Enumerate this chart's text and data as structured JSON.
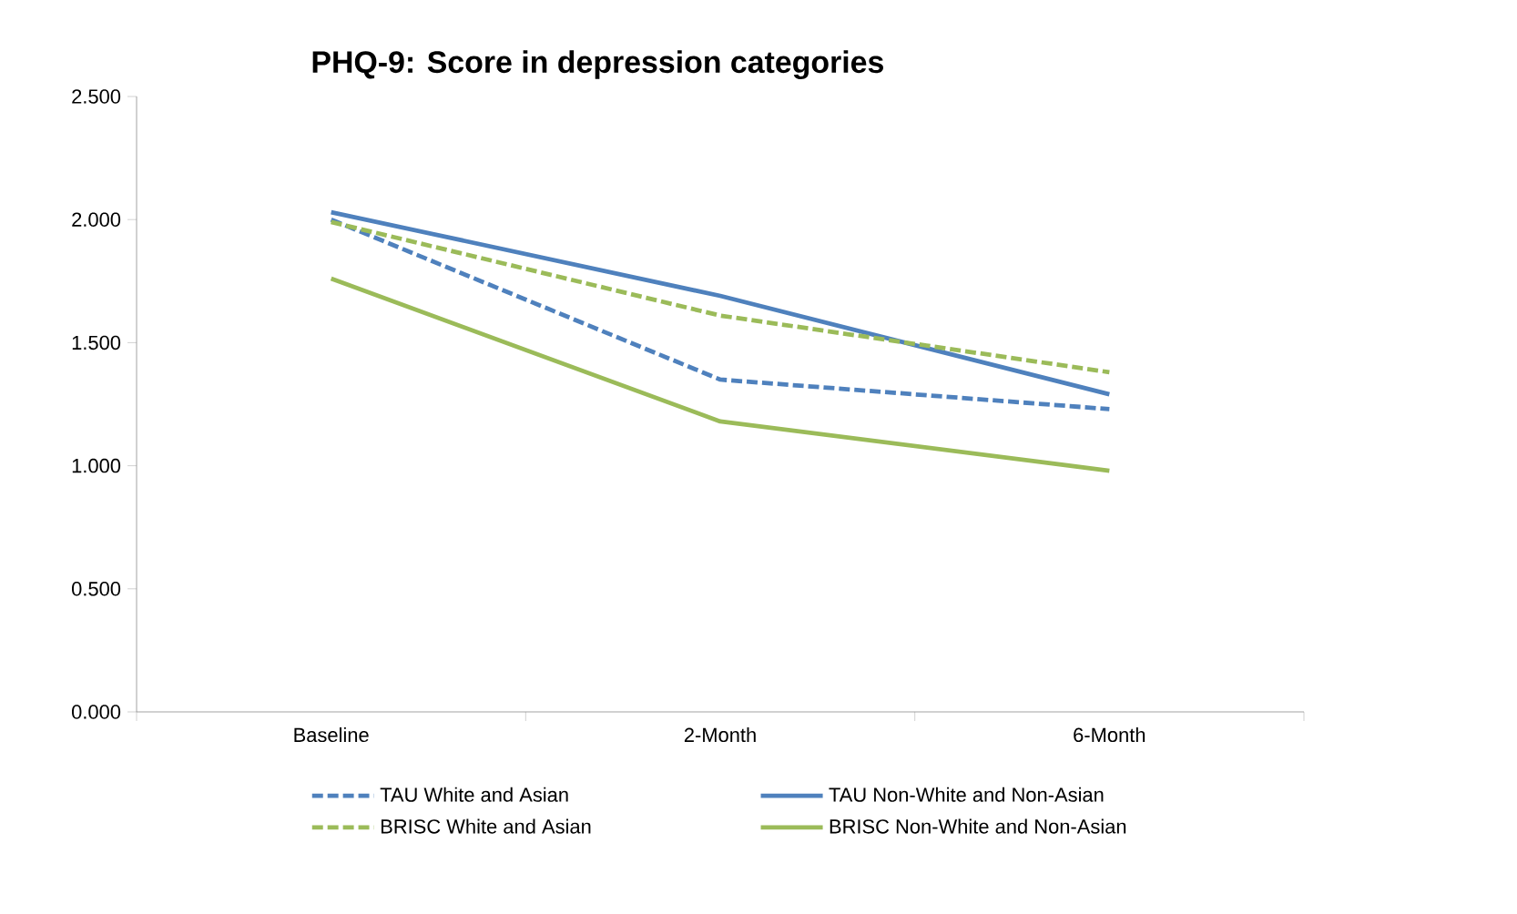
{
  "chart_data": {
    "type": "line",
    "title": "PHQ-9: Score in depression categories",
    "categories": [
      "Baseline",
      "2-Month",
      "6-Month"
    ],
    "series": [
      {
        "name": "TAU White and Asian",
        "color": "#4f81bd",
        "line_style": "dashed",
        "values": [
          2.0,
          1.35,
          1.23
        ]
      },
      {
        "name": "TAU Non-White and Non-Asian",
        "color": "#4f81bd",
        "line_style": "solid",
        "values": [
          2.03,
          1.69,
          1.29
        ]
      },
      {
        "name": "BRISC White and Asian",
        "color": "#9bbb59",
        "line_style": "dashed",
        "values": [
          1.99,
          1.61,
          1.38
        ]
      },
      {
        "name": "BRISC Non-White and Non-Asian",
        "color": "#9bbb59",
        "line_style": "solid",
        "values": [
          1.76,
          1.18,
          0.98
        ]
      }
    ],
    "ylim": [
      0,
      2.5
    ],
    "yticks": [
      {
        "value": 0,
        "label": "0.000"
      },
      {
        "value": 0.5,
        "label": "0.500"
      },
      {
        "value": 1.0,
        "label": "1.000"
      },
      {
        "value": 1.5,
        "label": "1.500"
      },
      {
        "value": 2.0,
        "label": "2.000"
      },
      {
        "value": 2.5,
        "label": "2.500"
      }
    ],
    "legend": "bottom",
    "grid": false,
    "marker": "none"
  }
}
